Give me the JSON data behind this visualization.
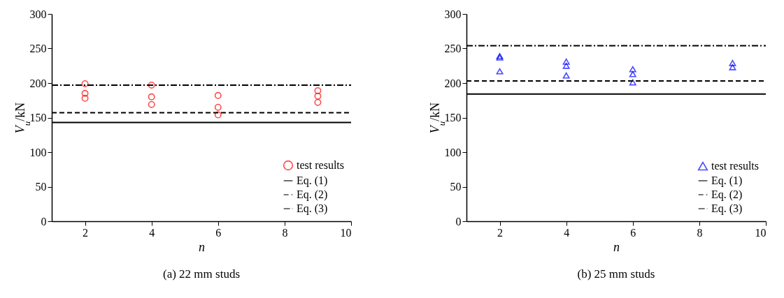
{
  "chart_data": [
    {
      "type": "scatter",
      "xlabel": "n",
      "ylabel": "V$_{u}$/kN",
      "annotations": [
        "(a) 22 mm studs"
      ],
      "xlim": [
        1,
        10
      ],
      "xticks": [
        2,
        4,
        6,
        8,
        10
      ],
      "ylim": [
        0,
        300
      ],
      "yticks": [
        0,
        50,
        100,
        150,
        200,
        250,
        300
      ],
      "grid": false,
      "legend": "bottom right",
      "series": [
        {
          "name": "test results",
          "type": "scatter",
          "marker": "circle",
          "color": "#ff0000",
          "x": [
            2,
            2,
            2,
            4,
            4,
            4,
            6,
            6,
            6,
            9,
            9,
            9
          ],
          "values": [
            199,
            185,
            178,
            197,
            180,
            169,
            182,
            165,
            154,
            189,
            181,
            172
          ]
        },
        {
          "name": "Eq. (1)",
          "type": "line",
          "line_style": "solid",
          "color": "#000000",
          "x": [
            1,
            10
          ],
          "values": [
            143,
            143
          ]
        },
        {
          "name": "Eq. (2)",
          "type": "line",
          "line_style": "dashed",
          "color": "#000000",
          "x": [
            1,
            10
          ],
          "values": [
            157,
            157
          ]
        },
        {
          "name": "Eq. (3)",
          "type": "line",
          "line_style": "dashdot",
          "color": "#000000",
          "x": [
            1,
            10
          ],
          "values": [
            197,
            197
          ]
        }
      ]
    },
    {
      "type": "scatter",
      "xlabel": "n",
      "ylabel": "V$_{u}$/kN",
      "annotations": [
        "(b) 25 mm studs"
      ],
      "xlim": [
        1,
        10
      ],
      "xticks": [
        2,
        4,
        6,
        8,
        10
      ],
      "ylim": [
        0,
        300
      ],
      "yticks": [
        0,
        50,
        100,
        150,
        200,
        250,
        300
      ],
      "grid": false,
      "legend": "bottom right",
      "series": [
        {
          "name": "test results",
          "type": "scatter",
          "marker": "triangle",
          "color": "#0000ff",
          "x": [
            2,
            2,
            2,
            4,
            4,
            4,
            6,
            6,
            6,
            9,
            9
          ],
          "values": [
            239,
            237,
            217,
            231,
            225,
            211,
            220,
            213,
            201,
            229,
            223
          ]
        },
        {
          "name": "Eq. (1)",
          "type": "line",
          "line_style": "solid",
          "color": "#000000",
          "x": [
            1,
            10
          ],
          "values": [
            184,
            184
          ]
        },
        {
          "name": "Eq. (2)",
          "type": "line",
          "line_style": "dashed",
          "color": "#000000",
          "x": [
            1,
            10
          ],
          "values": [
            203,
            203
          ]
        },
        {
          "name": "Eq. (3)",
          "type": "line",
          "line_style": "dashdot",
          "color": "#000000",
          "x": [
            1,
            10
          ],
          "values": [
            254,
            254
          ]
        }
      ]
    }
  ]
}
